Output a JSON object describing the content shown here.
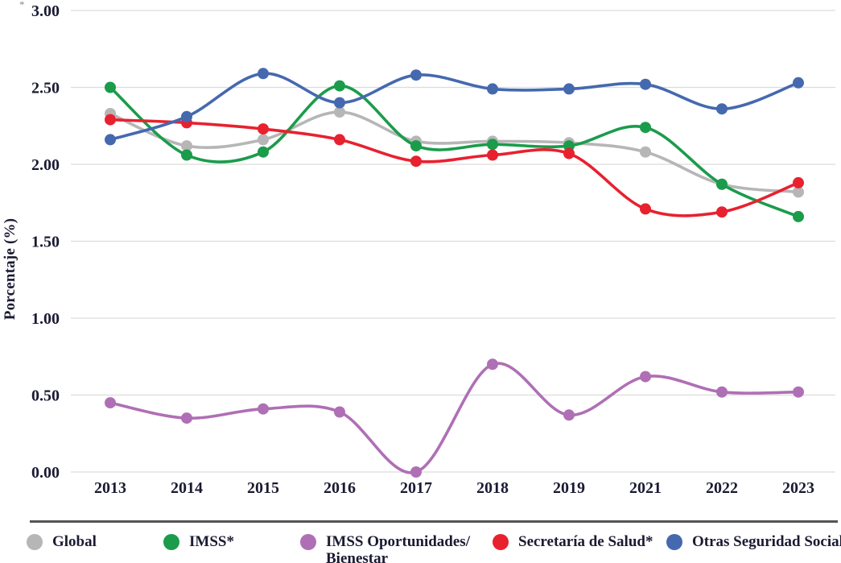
{
  "figure": {
    "stray_mark": "*"
  },
  "chart_data": {
    "type": "line",
    "title": "",
    "xlabel": "",
    "ylabel": "Porcentaje (%)",
    "categories": [
      "2013",
      "2014",
      "2015",
      "2016",
      "2017",
      "2018",
      "2019",
      "2021",
      "2022",
      "2023"
    ],
    "ylim": [
      0,
      3
    ],
    "ytick_values": [
      3.0,
      2.5,
      2.0,
      1.5,
      1.0,
      0.5,
      0.0
    ],
    "ytick_labels": [
      "3.00",
      "2.50",
      "2.00",
      "1.50",
      "1.00",
      "0.50",
      "0.00"
    ],
    "grid": true,
    "legend_position": "bottom",
    "colors": {
      "grid_line": "#dcdcdb",
      "axis_text": "#1a1a33",
      "separator": "#545456"
    },
    "series": [
      {
        "name": "Global",
        "color": "#b7b6b6",
        "legend_lines": [
          "Global"
        ],
        "values": [
          2.33,
          2.12,
          2.16,
          2.34,
          2.15,
          2.15,
          2.14,
          2.08,
          1.87,
          1.82
        ]
      },
      {
        "name": "IMSS*",
        "color": "#1a9c4b",
        "legend_lines": [
          "IMSS*"
        ],
        "values": [
          2.5,
          2.06,
          2.08,
          2.51,
          2.12,
          2.13,
          2.12,
          2.24,
          1.87,
          1.66
        ]
      },
      {
        "name": "IMSS Oportunidades/Bienestar",
        "color": "#af6fb5",
        "legend_lines": [
          "IMSS Oportunidades/",
          "Bienestar"
        ],
        "values": [
          0.45,
          0.35,
          0.41,
          0.39,
          0.0,
          0.7,
          0.37,
          0.62,
          0.52,
          0.52
        ]
      },
      {
        "name": "Secretaría de Salud*",
        "color": "#e8212f",
        "legend_lines": [
          "Secretaría de Salud*"
        ],
        "values": [
          2.29,
          2.27,
          2.23,
          2.16,
          2.02,
          2.06,
          2.07,
          1.71,
          1.69,
          1.88
        ]
      },
      {
        "name": "Otras Seguridad Social",
        "color": "#4569af",
        "legend_lines": [
          "Otras Seguridad Social"
        ],
        "values": [
          2.16,
          2.31,
          2.59,
          2.4,
          2.58,
          2.49,
          2.49,
          2.52,
          2.36,
          2.53
        ]
      }
    ]
  }
}
